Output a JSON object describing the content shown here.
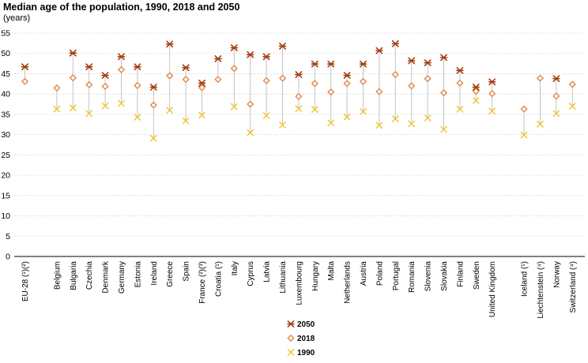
{
  "chart_data": {
    "type": "scatter",
    "title": "Median age of the population, 1990, 2018 and 2050",
    "subtitle": "(years)",
    "ylim": [
      0,
      55
    ],
    "yticks": [
      0,
      5,
      10,
      15,
      20,
      25,
      30,
      35,
      40,
      45,
      50,
      55
    ],
    "grid": true,
    "legend_position": "bottom-center",
    "colors": {
      "2050": "#a3400f",
      "2018": "#e0864a",
      "1990": "#f2c132",
      "connector": "#bdbdbd",
      "grid": "#d9d9d9"
    },
    "categories": [
      "EU-28 (¹)(²)",
      "Belgium",
      "Bulgaria",
      "Czechia",
      "Denmark",
      "Germany",
      "Estonia",
      "Ireland",
      "Greece",
      "Spain",
      "France (²)(³)",
      "Croatia (¹)",
      "Italy",
      "Cyprus",
      "Latvia",
      "Lithuania",
      "Luxembourg",
      "Hungary",
      "Malta",
      "Netherlands",
      "Austria",
      "Poland",
      "Portugal",
      "Romania",
      "Slovenia",
      "Slovakia",
      "Finland",
      "Sweden",
      "United Kingdom",
      "Iceland (¹)",
      "Liechtenstein (⁴)",
      "Norway",
      "Switzerland (⁴)"
    ],
    "series": [
      {
        "name": "2050",
        "marker": "star",
        "values": [
          46.7,
          null,
          50.1,
          46.7,
          44.6,
          49.2,
          46.7,
          41.7,
          52.3,
          46.5,
          42.7,
          48.7,
          51.4,
          49.7,
          49.2,
          51.8,
          44.8,
          47.4,
          47.4,
          44.6,
          47.4,
          50.7,
          52.4,
          48.2,
          47.7,
          49.0,
          45.8,
          41.7,
          43.0,
          null,
          null,
          43.8,
          null
        ]
      },
      {
        "name": "2018",
        "marker": "diamond",
        "values": [
          43.1,
          41.5,
          44.0,
          42.3,
          41.9,
          46.0,
          42.1,
          37.3,
          44.5,
          43.6,
          41.6,
          43.6,
          46.3,
          37.5,
          43.3,
          43.9,
          39.4,
          42.6,
          40.5,
          42.6,
          43.1,
          40.6,
          44.8,
          42.0,
          43.8,
          40.3,
          42.7,
          40.7,
          40.1,
          36.3,
          43.9,
          39.5,
          42.4
        ]
      },
      {
        "name": "1990",
        "marker": "x",
        "values": [
          null,
          36.3,
          36.6,
          35.2,
          37.1,
          37.7,
          34.3,
          29.1,
          36.0,
          33.4,
          34.8,
          null,
          36.9,
          30.5,
          34.7,
          32.4,
          36.4,
          36.2,
          32.9,
          34.4,
          35.7,
          32.3,
          33.9,
          32.7,
          34.1,
          31.3,
          36.3,
          38.4,
          35.8,
          29.9,
          32.6,
          35.2,
          37.0
        ]
      }
    ]
  }
}
